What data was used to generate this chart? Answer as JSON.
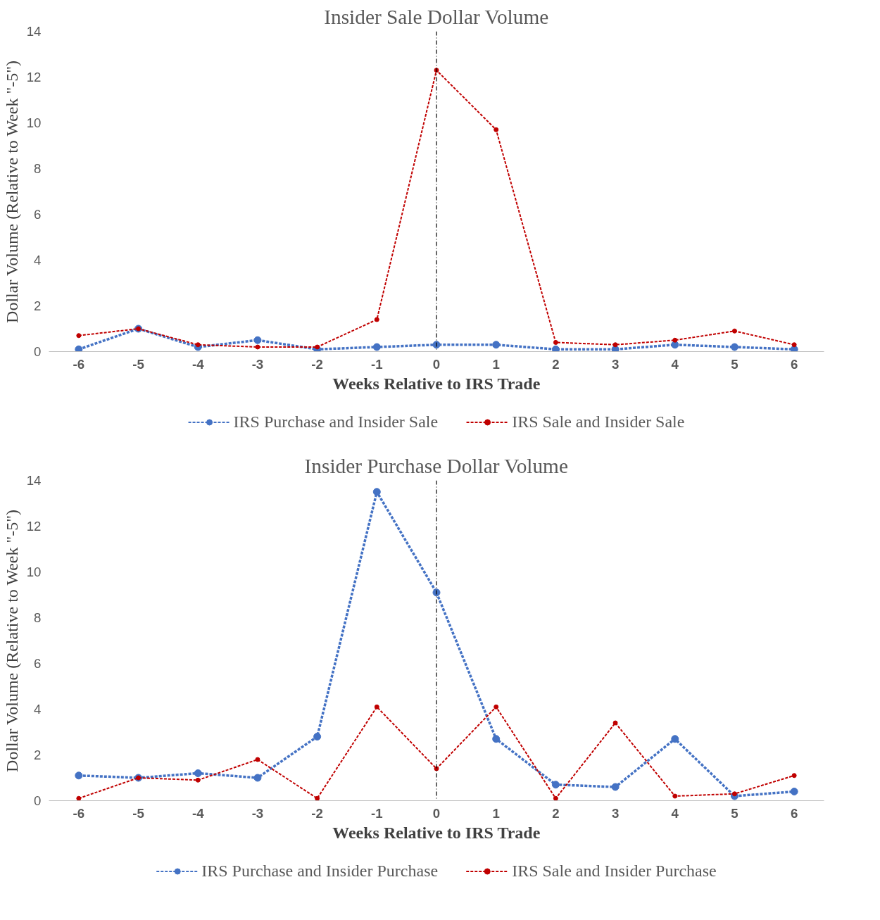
{
  "chart_data": [
    {
      "type": "line",
      "title": "Insider Sale Dollar Volume",
      "xlabel": "Weeks Relative to IRS Trade",
      "ylabel": "Dollar Volume (Relative to Week \"-5\")",
      "categories": [
        "-6",
        "-5",
        "-4",
        "-3",
        "-2",
        "-1",
        "0",
        "1",
        "2",
        "3",
        "4",
        "5",
        "6"
      ],
      "series": [
        {
          "name": "IRS Purchase and Insider Sale",
          "color": "#4472c4",
          "values": [
            0.1,
            1.0,
            0.2,
            0.5,
            0.1,
            0.2,
            0.3,
            0.3,
            0.1,
            0.1,
            0.3,
            0.2,
            0.1
          ]
        },
        {
          "name": "IRS Sale and Insider Sale",
          "color": "#c00000",
          "values": [
            0.7,
            1.0,
            0.3,
            0.2,
            0.2,
            1.4,
            12.3,
            9.7,
            0.4,
            0.3,
            0.5,
            0.9,
            0.3
          ]
        }
      ],
      "ylim": [
        0,
        14
      ],
      "yticks": [
        0,
        2,
        4,
        6,
        8,
        10,
        12,
        14
      ],
      "grid": false,
      "legend": "bottom",
      "marker": "circle",
      "line_style": "dashed",
      "ref_lines": [
        {
          "axis": "x",
          "value": "0",
          "color": "#000000",
          "line_style": "dashdot"
        }
      ]
    },
    {
      "type": "line",
      "title": "Insider Purchase Dollar Volume",
      "xlabel": "Weeks Relative to IRS Trade",
      "ylabel": "Dollar Volume (Relative to Week \"-5\")",
      "categories": [
        "-6",
        "-5",
        "-4",
        "-3",
        "-2",
        "-1",
        "0",
        "1",
        "2",
        "3",
        "4",
        "5",
        "6"
      ],
      "series": [
        {
          "name": "IRS Purchase and Insider Purchase",
          "color": "#4472c4",
          "values": [
            1.1,
            1.0,
            1.2,
            1.0,
            2.8,
            13.5,
            9.1,
            2.7,
            0.7,
            0.6,
            2.7,
            0.2,
            0.4
          ]
        },
        {
          "name": "IRS Sale and Insider Purchase",
          "color": "#c00000",
          "values": [
            0.1,
            1.0,
            0.9,
            1.8,
            0.1,
            4.1,
            1.4,
            4.1,
            0.1,
            3.4,
            0.2,
            0.3,
            1.1
          ]
        }
      ],
      "ylim": [
        0,
        14
      ],
      "yticks": [
        0,
        2,
        4,
        6,
        8,
        10,
        12,
        14
      ],
      "grid": false,
      "legend": "bottom",
      "marker": "circle",
      "line_style": "dashed",
      "ref_lines": [
        {
          "axis": "x",
          "value": "0",
          "color": "#000000",
          "line_style": "dashdot"
        }
      ]
    }
  ]
}
